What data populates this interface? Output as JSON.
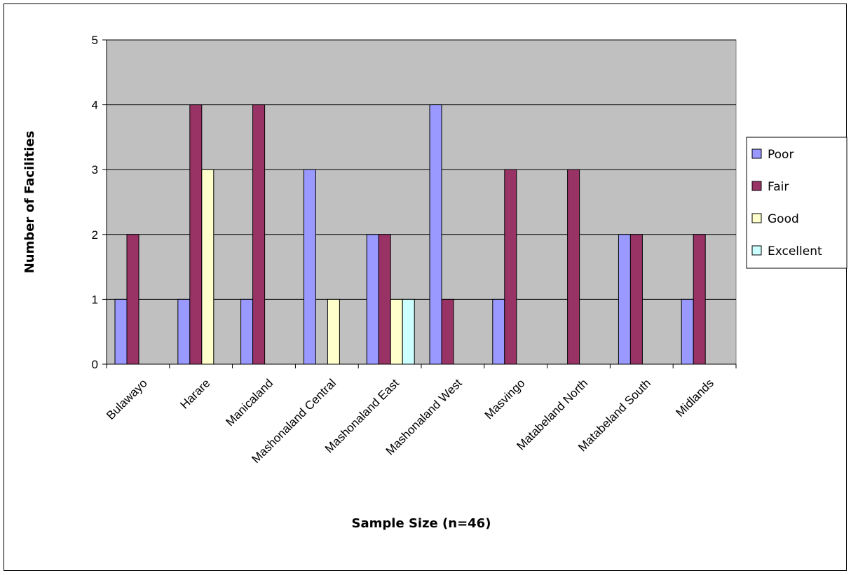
{
  "chart_data": {
    "type": "bar",
    "categories": [
      "Bulawayo",
      "Harare",
      "Manicaland",
      "Mashonaland Central",
      "Mashonaland East",
      "Mashonaland West",
      "Masvingo",
      "Matabeland North",
      "Matabeland South",
      "Midlands"
    ],
    "series": [
      {
        "name": "Poor",
        "color": "#9999ff",
        "values": [
          1,
          1,
          1,
          3,
          2,
          4,
          1,
          0,
          2,
          1
        ]
      },
      {
        "name": "Fair",
        "color": "#993366",
        "values": [
          2,
          4,
          4,
          0,
          2,
          1,
          3,
          3,
          2,
          2
        ]
      },
      {
        "name": "Good",
        "color": "#ffffcc",
        "values": [
          0,
          3,
          0,
          1,
          1,
          0,
          0,
          0,
          0,
          0
        ]
      },
      {
        "name": "Excellent",
        "color": "#ccffff",
        "values": [
          0,
          0,
          0,
          0,
          1,
          0,
          0,
          0,
          0,
          0
        ]
      }
    ],
    "xlabel": "Sample Size (n=46)",
    "ylabel": "Number of Facilities",
    "ylim": [
      0,
      5
    ],
    "yticks": [
      "0",
      "1",
      "2",
      "3",
      "4",
      "5"
    ],
    "grid": true,
    "legend_position": "right",
    "plot_background": "#c0c0c0"
  }
}
